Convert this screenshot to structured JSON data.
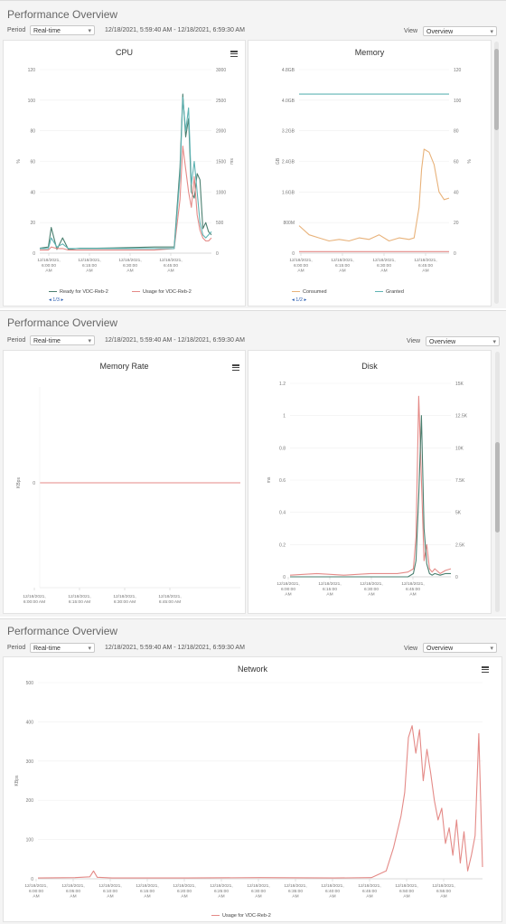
{
  "panels": [
    {
      "title": "Performance Overview",
      "period_label": "Period",
      "period_value": "Real-time",
      "range": "12/18/2021, 5:59:40 AM - 12/18/2021, 6:59:30 AM",
      "view_label": "View",
      "view_value": "Overview"
    },
    {
      "title": "Performance Overview",
      "period_label": "Period",
      "period_value": "Real-time",
      "range": "12/18/2021, 5:59:40 AM - 12/18/2021, 6:59:30 AM",
      "view_label": "View",
      "view_value": "Overview"
    },
    {
      "title": "Performance Overview",
      "period_label": "Period",
      "period_value": "Real-time",
      "range": "12/18/2021, 5:59:40 AM - 12/18/2021, 6:59:30 AM",
      "view_label": "View",
      "view_value": "Overview"
    }
  ],
  "icons": {
    "menu": "hamburger-menu-icon",
    "chevron": "chevron-down-icon"
  },
  "colors": {
    "red": "#e48a87",
    "teal": "#5fb3b3",
    "green": "#4a7f6f",
    "orange": "#e8b27a"
  },
  "chart_data": [
    {
      "id": "cpu",
      "type": "line",
      "title": "CPU",
      "ylabel": "%",
      "y2label": "ms",
      "ylim": [
        0,
        120
      ],
      "y2lim": [
        0,
        3000
      ],
      "y_ticks": [
        "0",
        "20",
        "40",
        "60",
        "80",
        "100",
        "120"
      ],
      "y2_ticks": [
        "0",
        "500",
        "1000",
        "1500",
        "2000",
        "2500",
        "3000"
      ],
      "x_ticks": [
        "12/18/2021,\n6:00:00\nAM",
        "12/18/2021,\n6:15:00\nAM",
        "12/18/2021,\n6:30:00\nAM",
        "12/18/2021,\n6:45:00\nAM"
      ],
      "x": [
        0,
        3,
        4,
        6,
        8,
        10,
        14,
        20,
        30,
        40,
        47,
        49,
        50,
        51,
        52,
        53,
        54,
        55,
        56,
        57,
        58,
        59,
        60
      ],
      "series": [
        {
          "name": "Ready for VDC-Reb-2",
          "color": "#4a7f6f",
          "axis": "y2",
          "values": [
            80,
            100,
            420,
            60,
            250,
            60,
            80,
            80,
            90,
            100,
            100,
            1400,
            2600,
            1900,
            2200,
            1000,
            900,
            1300,
            1200,
            400,
            500,
            350,
            300
          ]
        },
        {
          "name": "Usage for VDC-Reb-2",
          "color": "#e48a87",
          "axis": "y",
          "values": [
            2,
            2,
            4,
            3,
            3,
            2,
            2,
            2,
            2,
            2,
            3,
            35,
            70,
            55,
            40,
            30,
            50,
            25,
            15,
            10,
            8,
            8,
            10
          ]
        },
        {
          "name": "",
          "color": "#5fb3b3",
          "axis": "y",
          "values": [
            3,
            3,
            10,
            4,
            6,
            3,
            3,
            3,
            3,
            3,
            3,
            50,
            102,
            80,
            95,
            45,
            60,
            40,
            20,
            12,
            10,
            12,
            14
          ]
        }
      ]
    },
    {
      "id": "memory",
      "type": "line",
      "title": "Memory",
      "ylabel": "GB",
      "y2label": "%",
      "ylim": [
        0,
        120
      ],
      "y_ticks": [
        "0",
        "800M",
        "1.6GB",
        "2.4GB",
        "3.2GB",
        "4.0GB",
        "4.8GB"
      ],
      "y2_ticks": [
        "0",
        "20",
        "40",
        "60",
        "80",
        "100",
        "120"
      ],
      "x_ticks": [
        "12/18/2021,\n6:00:00\nAM",
        "12/18/2021,\n6:15:00\nAM",
        "12/18/2021,\n6:30:00\nAM",
        "12/18/2021,\n6:45:00\nAM"
      ],
      "x": [
        0,
        4,
        8,
        12,
        16,
        20,
        24,
        28,
        32,
        36,
        40,
        44,
        46,
        48,
        49,
        50,
        52,
        54,
        56,
        58,
        60
      ],
      "series": [
        {
          "name": "Consumed",
          "color": "#e8b27a",
          "axis": "y",
          "values": [
            18,
            12,
            10,
            8,
            9,
            8,
            10,
            9,
            12,
            8,
            10,
            9,
            10,
            30,
            55,
            68,
            66,
            58,
            40,
            35,
            36
          ]
        },
        {
          "name": "Granted",
          "color": "#5fb3b3",
          "axis": "y",
          "values": [
            104,
            104,
            104,
            104,
            104,
            104,
            104,
            104,
            104,
            104,
            104,
            104,
            104,
            104,
            104,
            104,
            104,
            104,
            104,
            104,
            104
          ]
        },
        {
          "name": "",
          "color": "#e48a87",
          "axis": "y",
          "values": [
            1,
            1,
            1,
            1,
            1,
            1,
            1,
            1,
            1,
            1,
            1,
            1,
            1,
            1,
            1,
            1,
            1,
            1,
            1,
            1,
            1
          ]
        }
      ]
    },
    {
      "id": "memory-rate",
      "type": "line",
      "title": "Memory Rate",
      "ylabel": "KBps",
      "y_ticks": [
        "0"
      ],
      "x_ticks": [
        "12/18/2021,\n6:00:00 AM",
        "12/18/2021,\n6:15:00 AM",
        "12/18/2021,\n6:30:00 AM",
        "12/18/2021,\n6:45:00 AM"
      ],
      "x": [
        0,
        60
      ],
      "series": [
        {
          "name": "",
          "color": "#e48a87",
          "values": [
            0,
            0
          ]
        }
      ]
    },
    {
      "id": "disk",
      "type": "line",
      "title": "Disk",
      "ylabel": "ms",
      "ylim": [
        0,
        1.2
      ],
      "y_ticks": [
        "0",
        "0.2",
        "0.4",
        "0.6",
        "0.8",
        "1",
        "1.2"
      ],
      "y2_ticks": [
        "0",
        "2.5K",
        "5K",
        "7.5K",
        "10K",
        "12.5K",
        "15K"
      ],
      "x_ticks": [
        "12/18/2021,\n6:00:00\nAM",
        "12/18/2021,\n6:15:00\nAM",
        "12/18/2021,\n6:30:00\nAM",
        "12/18/2021,\n6:45:00\nAM"
      ],
      "x": [
        0,
        10,
        20,
        30,
        40,
        44,
        46,
        47,
        48,
        49,
        50,
        51,
        52,
        53,
        54,
        56,
        58,
        60
      ],
      "series": [
        {
          "name": "",
          "color": "#e48a87",
          "values": [
            0.01,
            0.02,
            0.01,
            0.02,
            0.02,
            0.03,
            0.05,
            0.25,
            1.12,
            0.6,
            0.1,
            0.2,
            0.05,
            0.03,
            0.05,
            0.02,
            0.04,
            0.05
          ]
        },
        {
          "name": "",
          "color": "#4a7f6f",
          "values": [
            0,
            0,
            0,
            0,
            0,
            0,
            0.02,
            0.1,
            0.5,
            1.0,
            0.3,
            0.08,
            0.02,
            0.01,
            0.02,
            0.01,
            0.02,
            0.02
          ]
        }
      ]
    },
    {
      "id": "network",
      "type": "line",
      "title": "Network",
      "ylabel": "KBps",
      "ylim": [
        0,
        500
      ],
      "y_ticks": [
        "0",
        "100",
        "200",
        "300",
        "400",
        "500"
      ],
      "x_ticks": [
        "12/18/2021,\n6:00:00\nAM",
        "12/18/2021,\n6:05:00\nAM",
        "12/18/2021,\n6:10:00\nAM",
        "12/18/2021,\n6:15:00\nAM",
        "12/18/2021,\n6:20:00\nAM",
        "12/18/2021,\n6:25:00\nAM",
        "12/18/2021,\n6:30:00\nAM",
        "12/18/2021,\n6:35:00\nAM",
        "12/18/2021,\n6:40:00\nAM",
        "12/18/2021,\n6:45:00\nAM",
        "12/18/2021,\n6:50:00\nAM",
        "12/18/2021,\n6:55:00\nAM"
      ],
      "x": [
        0,
        5,
        7,
        7.5,
        8,
        10,
        20,
        30,
        40,
        45,
        47,
        48,
        49,
        49.5,
        50,
        50.5,
        51,
        51.5,
        52,
        52.5,
        53,
        53.5,
        54,
        54.5,
        55,
        55.5,
        56,
        56.5,
        57,
        57.5,
        58,
        58.5,
        59,
        59.5,
        60
      ],
      "series": [
        {
          "name": "Usage for VDC-Reb-2",
          "color": "#e48a87",
          "values": [
            2,
            3,
            5,
            20,
            4,
            2,
            2,
            3,
            2,
            3,
            20,
            80,
            160,
            220,
            360,
            390,
            320,
            380,
            250,
            330,
            270,
            200,
            150,
            180,
            90,
            130,
            60,
            150,
            40,
            120,
            20,
            60,
            110,
            370,
            30
          ]
        }
      ]
    }
  ]
}
